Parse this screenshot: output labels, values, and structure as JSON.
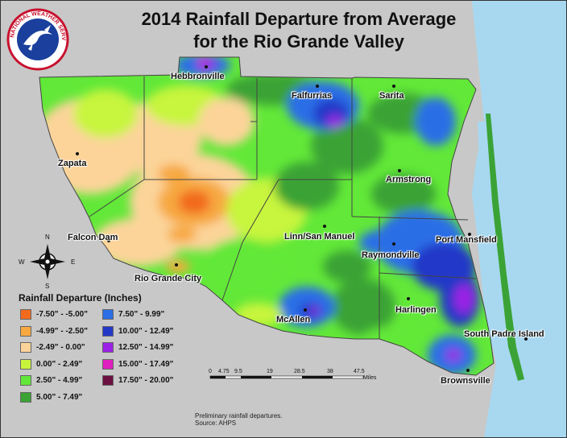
{
  "title_line1": "2014 Rainfall Departure from Average",
  "title_line2": "for the Rio Grande Valley",
  "logo_text": "NATIONAL WEATHER SERVICE",
  "colors": {
    "background": "#c8c8c8",
    "water": "#a8d8f0",
    "county_line": "#444444"
  },
  "cities": [
    {
      "name": "Hebbronville"
    },
    {
      "name": "Falfurrias"
    },
    {
      "name": "Sarita"
    },
    {
      "name": "Zapata"
    },
    {
      "name": "Armstrong"
    },
    {
      "name": "Falcon Dam"
    },
    {
      "name": "Linn/San Manuel"
    },
    {
      "name": "Port Mansfield"
    },
    {
      "name": "Raymondville"
    },
    {
      "name": "Rio Grande City"
    },
    {
      "name": "Harlingen"
    },
    {
      "name": "McAllen"
    },
    {
      "name": "South Padre Island"
    },
    {
      "name": "Brownsville"
    }
  ],
  "legend": {
    "title": "Rainfall Departure (Inches)",
    "items": [
      {
        "label": "-7.50\" - -5.00\"",
        "color": "#f26b1d"
      },
      {
        "label": "-4.99\" - -2.50\"",
        "color": "#f7a840"
      },
      {
        "label": "-2.49\" - 0.00\"",
        "color": "#fcd49a"
      },
      {
        "label": "0.00\" - 2.49\"",
        "color": "#c8f53c"
      },
      {
        "label": "2.50\" - 4.99\"",
        "color": "#62e838"
      },
      {
        "label": "5.00\" - 7.49\"",
        "color": "#3ba336"
      },
      {
        "label": "7.50\" - 9.99\"",
        "color": "#2b6ee6"
      },
      {
        "label": "10.00\" - 12.49\"",
        "color": "#2438c8"
      },
      {
        "label": "12.50\" - 14.99\"",
        "color": "#9b22e6"
      },
      {
        "label": "15.00\" - 17.49\"",
        "color": "#e01fc0"
      },
      {
        "label": "17.50\" - 20.00\"",
        "color": "#6b1040"
      }
    ]
  },
  "compass": {
    "n": "N",
    "s": "S",
    "e": "E",
    "w": "W"
  },
  "scalebar": {
    "ticks": [
      "0",
      "4.75",
      "9.5",
      "19",
      "28.5",
      "38",
      "47.5"
    ],
    "unit": "Miles"
  },
  "note_line1": "Preliminary rainfall departures.",
  "note_line2": "Source: AHPS"
}
